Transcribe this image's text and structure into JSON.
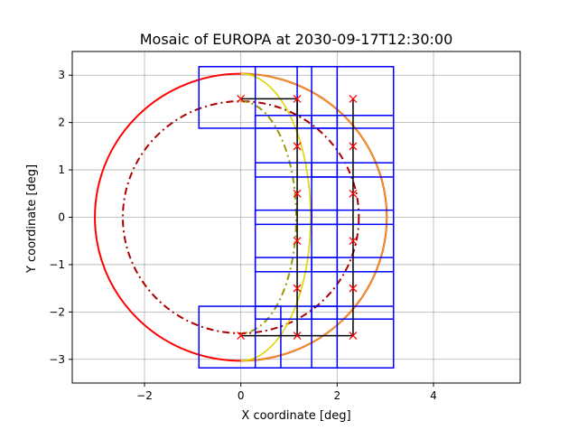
{
  "chart_data": {
    "type": "line",
    "title": "Mosaic of EUROPA at 2030-09-17T12:30:00",
    "xlabel": "X coordinate [deg]",
    "ylabel": "Y coordinate [deg]",
    "xlim": [
      -3.5,
      5.8
    ],
    "ylim": [
      -3.5,
      3.5
    ],
    "xticks": [
      -2,
      0,
      2,
      4
    ],
    "yticks": [
      -3,
      -2,
      -1,
      0,
      1,
      2,
      3
    ],
    "grid": true,
    "colors": {
      "tile": "#0000ff",
      "path": "#000000",
      "marker": "#ff0000",
      "limb_outer": "#ff0000",
      "limb_inner": "#aa0000",
      "terminator_solid": "#dddd00",
      "terminator_dashed": "#999900",
      "limb_orange": "#e6a020"
    },
    "outer_circle": {
      "cx": 0,
      "cy": 0,
      "r": 3.03
    },
    "inner_circle": {
      "cx": 0,
      "cy": 0,
      "r": 2.45,
      "style": "dashdot"
    },
    "tiles": [
      [
        -0.87,
        1.88,
        1.17,
        3.18
      ],
      [
        0.3,
        1.88,
        2.0,
        3.18
      ],
      [
        1.47,
        1.88,
        3.17,
        3.18
      ],
      [
        0.3,
        0.85,
        2.0,
        2.15
      ],
      [
        1.47,
        0.85,
        3.17,
        2.15
      ],
      [
        0.3,
        -0.15,
        2.0,
        1.15
      ],
      [
        1.47,
        -0.15,
        3.17,
        1.15
      ],
      [
        0.3,
        -1.15,
        2.0,
        0.15
      ],
      [
        1.47,
        -1.15,
        3.17,
        0.15
      ],
      [
        0.3,
        -2.15,
        2.0,
        -0.85
      ],
      [
        1.47,
        -2.15,
        3.17,
        -0.85
      ],
      [
        -0.87,
        -3.18,
        0.83,
        -1.88
      ],
      [
        0.3,
        -3.18,
        2.0,
        -1.88
      ],
      [
        1.47,
        -3.18,
        3.17,
        -1.88
      ]
    ],
    "pointings": [
      [
        0,
        2.5
      ],
      [
        1.17,
        2.5
      ],
      [
        2.33,
        2.5
      ],
      [
        1.17,
        1.5
      ],
      [
        2.33,
        1.5
      ],
      [
        1.17,
        0.5
      ],
      [
        2.33,
        0.5
      ],
      [
        1.17,
        -0.5
      ],
      [
        2.33,
        -0.5
      ],
      [
        1.17,
        -1.5
      ],
      [
        2.33,
        -1.5
      ],
      [
        0,
        -2.5
      ],
      [
        1.17,
        -2.5
      ],
      [
        2.33,
        -2.5
      ]
    ],
    "path": [
      [
        0,
        2.5
      ],
      [
        1.17,
        2.5
      ],
      [
        1.17,
        -2.5
      ],
      [
        0,
        -2.5
      ],
      [
        2.33,
        -2.5
      ],
      [
        2.33,
        2.5
      ]
    ],
    "terminator_solid": {
      "cx": 0,
      "cy": 0,
      "r": 3.03,
      "term_x": 1.45
    },
    "terminator_dashed": {
      "cx": 0,
      "cy": 0,
      "r": 2.45,
      "term_x": 1.15
    }
  }
}
